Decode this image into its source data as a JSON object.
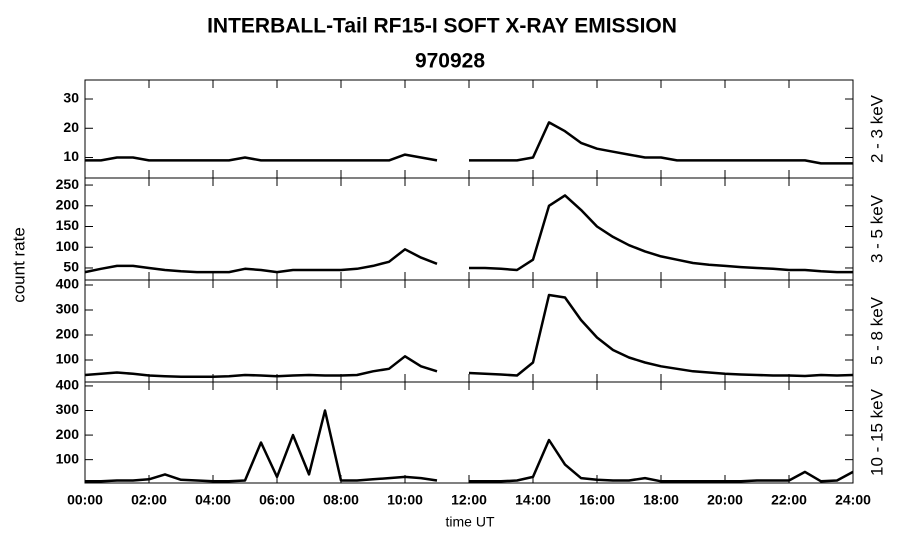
{
  "chart_data": [
    {
      "type": "line",
      "title": "INTERBALL-Tail RF15-I SOFT X-RAY EMISSION",
      "subtitle": "970928",
      "ylabel": "count rate",
      "label": "2 - 3 keV",
      "color": "#000000",
      "x": [
        0,
        0.5,
        1,
        1.5,
        2,
        2.5,
        3,
        3.5,
        4,
        4.5,
        5,
        5.5,
        6,
        6.5,
        7,
        7.5,
        8,
        8.5,
        9,
        9.5,
        10,
        10.5,
        11,
        11.5,
        12,
        12.5,
        13,
        13.5,
        14,
        14.5,
        15,
        15.5,
        16,
        16.5,
        17,
        17.5,
        18,
        18.5,
        19,
        19.5,
        20,
        20.5,
        21,
        21.5,
        22,
        22.5,
        23,
        23.5,
        24
      ],
      "values": [
        9,
        9,
        10,
        10,
        9,
        9,
        9,
        9,
        9,
        9,
        10,
        9,
        9,
        9,
        9,
        9,
        9,
        9,
        9,
        9,
        11,
        10,
        9,
        null,
        9,
        9,
        9,
        9,
        10,
        22,
        19,
        15,
        13,
        12,
        11,
        10,
        10,
        9,
        9,
        9,
        9,
        9,
        9,
        9,
        9,
        9,
        8,
        8,
        8
      ],
      "xlim": [
        0,
        24
      ],
      "ylim": [
        3,
        36.5
      ],
      "yticks": [
        10,
        20,
        30
      ]
    },
    {
      "type": "line",
      "label": "3 - 5 keV",
      "color": "#000000",
      "x": [
        0,
        0.5,
        1,
        1.5,
        2,
        2.5,
        3,
        3.5,
        4,
        4.5,
        5,
        5.5,
        6,
        6.5,
        7,
        7.5,
        8,
        8.5,
        9,
        9.5,
        10,
        10.5,
        11,
        11.5,
        12,
        12.5,
        13,
        13.5,
        14,
        14.5,
        15,
        15.5,
        16,
        16.5,
        17,
        17.5,
        18,
        18.5,
        19,
        19.5,
        20,
        20.5,
        21,
        21.5,
        22,
        22.5,
        23,
        23.5,
        24
      ],
      "values": [
        40,
        48,
        55,
        55,
        50,
        45,
        42,
        40,
        40,
        40,
        48,
        45,
        40,
        45,
        45,
        45,
        45,
        48,
        55,
        65,
        95,
        75,
        60,
        null,
        50,
        50,
        48,
        45,
        70,
        200,
        225,
        190,
        150,
        125,
        105,
        90,
        78,
        70,
        62,
        58,
        55,
        52,
        50,
        48,
        45,
        45,
        42,
        40,
        40
      ],
      "xlim": [
        0,
        24
      ],
      "ylim": [
        21,
        267
      ],
      "yticks": [
        50,
        100,
        150,
        200,
        250
      ]
    },
    {
      "type": "line",
      "label": "5 - 8 keV",
      "color": "#000000",
      "x": [
        0,
        0.5,
        1,
        1.5,
        2,
        2.5,
        3,
        3.5,
        4,
        4.5,
        5,
        5.5,
        6,
        6.5,
        7,
        7.5,
        8,
        8.5,
        9,
        9.5,
        10,
        10.5,
        11,
        11.5,
        12,
        12.5,
        13,
        13.5,
        14,
        14.5,
        15,
        15.5,
        16,
        16.5,
        17,
        17.5,
        18,
        18.5,
        19,
        19.5,
        20,
        20.5,
        21,
        21.5,
        22,
        22.5,
        23,
        23.5,
        24
      ],
      "values": [
        40,
        45,
        50,
        45,
        38,
        35,
        33,
        33,
        33,
        35,
        40,
        38,
        35,
        38,
        40,
        38,
        38,
        40,
        55,
        65,
        115,
        75,
        55,
        null,
        48,
        45,
        42,
        38,
        90,
        360,
        350,
        260,
        190,
        140,
        110,
        90,
        75,
        65,
        55,
        50,
        45,
        42,
        40,
        38,
        38,
        36,
        40,
        38,
        40
      ],
      "xlim": [
        0,
        24
      ],
      "ylim": [
        12,
        420
      ],
      "yticks": [
        100,
        200,
        300,
        400
      ]
    },
    {
      "type": "line",
      "label": "10 - 15 keV",
      "color": "#000000",
      "xlabel": "time UT",
      "x": [
        0,
        0.5,
        1,
        1.5,
        2,
        2.5,
        3,
        3.5,
        4,
        4.5,
        5,
        5.5,
        6,
        6.5,
        7,
        7.5,
        8,
        8.5,
        9,
        9.5,
        10,
        10.5,
        11,
        11.5,
        12,
        12.5,
        13,
        13.5,
        14,
        14.5,
        15,
        15.5,
        16,
        16.5,
        17,
        17.5,
        18,
        18.5,
        19,
        19.5,
        20,
        20.5,
        21,
        21.5,
        22,
        22.5,
        23,
        23.5,
        24
      ],
      "values": [
        12,
        12,
        15,
        15,
        20,
        40,
        18,
        15,
        12,
        12,
        15,
        170,
        30,
        200,
        40,
        300,
        15,
        15,
        20,
        25,
        30,
        25,
        15,
        null,
        12,
        12,
        12,
        15,
        30,
        180,
        80,
        25,
        18,
        15,
        15,
        25,
        12,
        12,
        12,
        12,
        12,
        12,
        15,
        15,
        15,
        50,
        12,
        15,
        50
      ],
      "xlim": [
        0,
        24
      ],
      "ylim": [
        5,
        416
      ],
      "yticks": [
        100,
        200,
        300,
        400
      ],
      "xticks": [
        {
          "value": 0,
          "label": "00:00"
        },
        {
          "value": 2,
          "label": "02:00"
        },
        {
          "value": 4,
          "label": "04:00"
        },
        {
          "value": 6,
          "label": "06:00"
        },
        {
          "value": 8,
          "label": "08:00"
        },
        {
          "value": 10,
          "label": "10:00"
        },
        {
          "value": 12,
          "label": "12:00"
        },
        {
          "value": 14,
          "label": "14:00"
        },
        {
          "value": 16,
          "label": "16:00"
        },
        {
          "value": 18,
          "label": "18:00"
        },
        {
          "value": 20,
          "label": "20:00"
        },
        {
          "value": 22,
          "label": "22:00"
        },
        {
          "value": 24,
          "label": "24:00"
        }
      ]
    }
  ]
}
